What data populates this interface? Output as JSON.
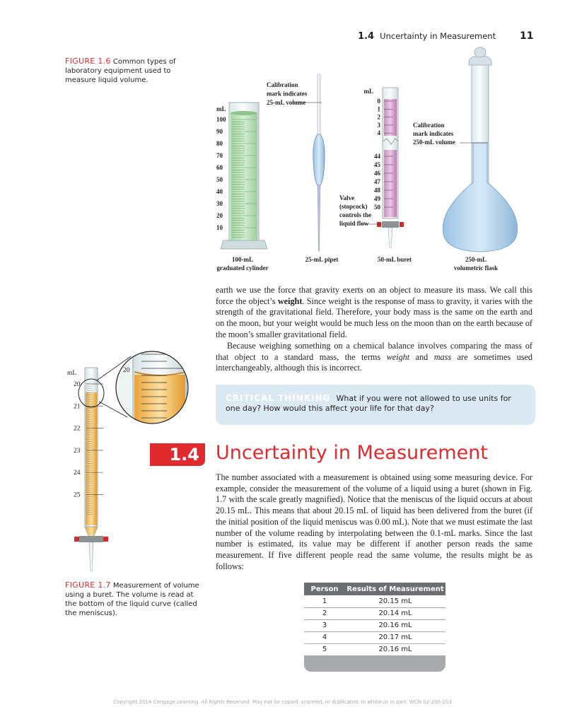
{
  "header": {
    "section": "1.4",
    "title": "Uncertainty in Measurement",
    "page": "11"
  },
  "figure_1_6": {
    "label": "FIGURE 1.6",
    "caption": "Common types of laboratory equipment used to measure liquid volume.",
    "cylinder_unit": "mL",
    "cylinder_scale": [
      100,
      90,
      80,
      70,
      60,
      50,
      40,
      30,
      20,
      10
    ],
    "pipet_callout": [
      "Calibration",
      "mark indicates",
      "25-mL volume"
    ],
    "buret_unit": "mL",
    "buret_top_scale": [
      0,
      1,
      2,
      3,
      4
    ],
    "buret_bottom_scale": [
      44,
      45,
      46,
      47,
      48,
      49,
      50
    ],
    "valve_callout": [
      "Valve",
      "(stopcock)",
      "controls the",
      "liquid flow"
    ],
    "flask_callout": [
      "Calibration",
      "mark indicates",
      "250-mL volume"
    ],
    "cylinder_label": [
      "100-mL",
      "graduated cylinder"
    ],
    "pipet_label": "25-mL pipet",
    "buret_label": "50-mL buret",
    "flask_label": [
      "250-mL",
      "volumetric flask"
    ]
  },
  "paragraph_1": [
    "earth we use the force that gravity exerts on an object to measure its mass. We call this force the object’s ",
    "weight",
    ". Since weight is the response of mass to gravity, it varies with the strength of the gravitational field. Therefore, your body mass is the same on the earth and on the moon, but your weight would be much less on the moon than on the earth because of the moon’s smaller gravitational field."
  ],
  "paragraph_2": [
    "Because weighing something on a chemical balance involves comparing the mass of that object to a standard mass, the terms ",
    "weight",
    " and ",
    "mass",
    " are sometimes used interchangeably, although this is incorrect."
  ],
  "critical_thinking": {
    "label": "CRITICAL THINKING",
    "text": "What if you were not allowed to use units for one day? How would this affect your life for that day?"
  },
  "section": {
    "number": "1.4",
    "title": "Uncertainty in Measurement"
  },
  "paragraph_3": "The number associated with a measurement is obtained using some measuring device. For example, consider the measurement of the volume of a liquid using a buret (shown in Fig. 1.7 with the scale greatly magnified). Notice that the meniscus of the liquid occurs at about 20.15 mL. This means that about 20.15 mL of liquid has been delivered from the buret (if the initial position of the liquid meniscus was 0.00 mL). Note that we must estimate the last number of the volume reading by interpolating between the 0.1-mL marks. Since the last number is estimated, its value may be different if another person reads the same measurement. If five different people read the same volume, the results might be as follows:",
  "table": {
    "headers": [
      "Person",
      "Results of Measurement"
    ],
    "rows": [
      [
        "1",
        "20.15 mL"
      ],
      [
        "2",
        "20.14 mL"
      ],
      [
        "3",
        "20.16 mL"
      ],
      [
        "4",
        "20.17 mL"
      ],
      [
        "5",
        "20.16 mL"
      ]
    ]
  },
  "figure_1_7": {
    "label": "FIGURE 1.7",
    "caption": "Measurement of volume using a buret. The volume is read at the bottom of the liquid curve (called the meniscus).",
    "unit": "mL",
    "scale": [
      20,
      21,
      22,
      23,
      24,
      25
    ],
    "zoom_label": "20"
  },
  "footer": "Copyright 2018 Cengage Learning. All Rights Reserved. May not be copied, scanned, or duplicated, in whole or in part.  WCN 02-200-203"
}
